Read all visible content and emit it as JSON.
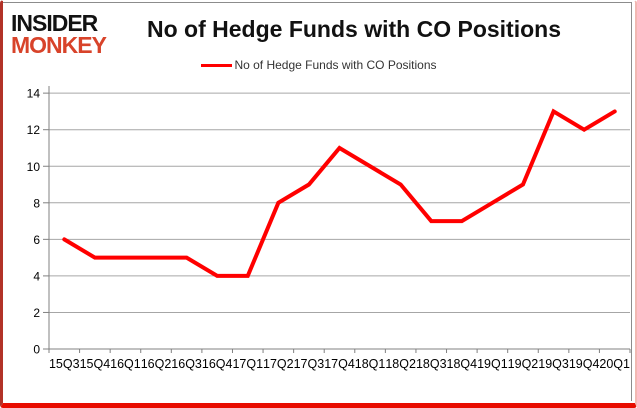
{
  "brand": {
    "line1": "INSIDER",
    "line2": "MONKEY",
    "accent_color": "#d8432a"
  },
  "header": {
    "title": "No of Hedge Funds with CO Positions"
  },
  "legend": {
    "label": "No of Hedge Funds with CO Positions",
    "line_color": "#ff0000"
  },
  "chart_data": {
    "type": "line",
    "title": "No of Hedge Funds with CO Positions",
    "categories": [
      "15Q3",
      "15Q4",
      "16Q1",
      "16Q2",
      "16Q3",
      "16Q4",
      "17Q1",
      "17Q2",
      "17Q3",
      "17Q4",
      "18Q1",
      "18Q2",
      "18Q3",
      "18Q4",
      "19Q1",
      "19Q2",
      "19Q3",
      "19Q4",
      "20Q1"
    ],
    "series": [
      {
        "name": "No of Hedge Funds with CO Positions",
        "color": "#ff0000",
        "values": [
          6,
          5,
          5,
          5,
          5,
          4,
          4,
          8,
          9,
          11,
          10,
          9,
          7,
          7,
          8,
          9,
          13,
          12,
          13
        ]
      }
    ],
    "ylim": [
      0,
      14
    ],
    "yticks": [
      0,
      2,
      4,
      6,
      8,
      10,
      12,
      14
    ],
    "grid": true,
    "legend_position": "top-center",
    "gridline_color": "#a6a6a6",
    "axis_color": "#808080",
    "tick_label_color": "#000000",
    "background": "#ffffff",
    "frame_color": "#e80c00"
  }
}
